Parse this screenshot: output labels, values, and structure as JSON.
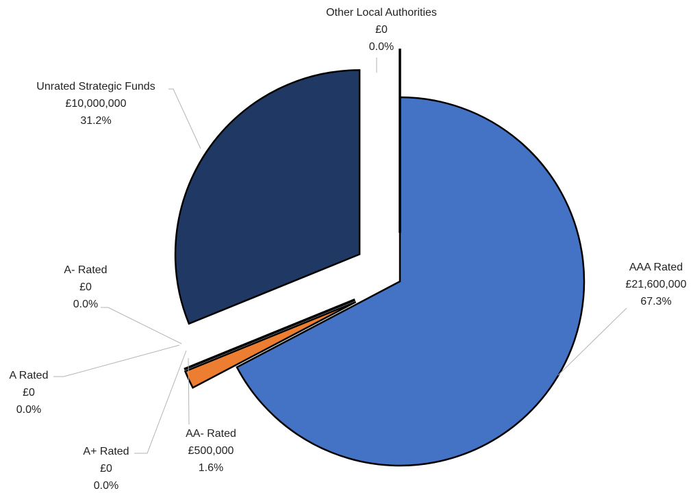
{
  "chart_data": {
    "type": "pie",
    "title": "",
    "currency": "£",
    "slices": [
      {
        "name": "AAA Rated",
        "amount": "£21,600,000",
        "value": 21600000,
        "percent": "67.3%",
        "color": "#4472C4"
      },
      {
        "name": "AA- Rated",
        "amount": "£500,000",
        "value": 500000,
        "percent": "1.6%",
        "color": "#ED7D31"
      },
      {
        "name": "A+ Rated",
        "amount": "£0",
        "value": 0,
        "percent": "0.0%",
        "color": "#A5A5A5"
      },
      {
        "name": "A Rated",
        "amount": "£0",
        "value": 0,
        "percent": "0.0%",
        "color": "#FFC000"
      },
      {
        "name": "A- Rated",
        "amount": "£0",
        "value": 0,
        "percent": "0.0%",
        "color": "#5B9BD5"
      },
      {
        "name": "Unrated Strategic Funds",
        "amount": "£10,000,000",
        "value": 10000000,
        "percent": "31.2%",
        "color": "#203864"
      },
      {
        "name": "Other Local Authorities",
        "amount": "£0",
        "value": 0,
        "percent": "0.0%",
        "color": "#70AD47"
      }
    ],
    "exploded": true,
    "legend": "none",
    "slice_outline_color": "#000000",
    "leader_line_color": "#B3B3B3"
  }
}
